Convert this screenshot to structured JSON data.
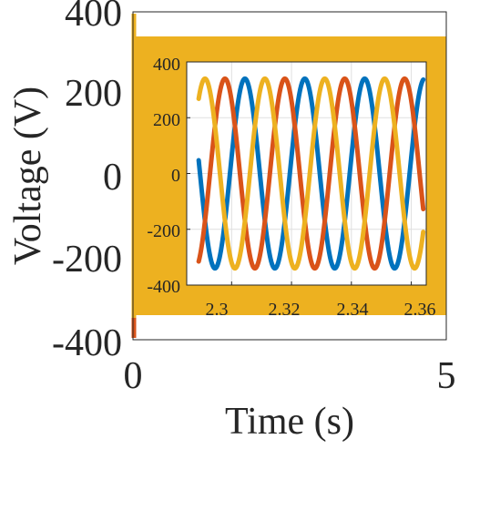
{
  "chart_data": [
    {
      "type": "line",
      "title": "",
      "xlabel": "Time (s)",
      "ylabel": "Voltage (V)",
      "xlim": [
        0,
        5
      ],
      "ylim": [
        -400,
        400
      ],
      "xticks": [
        0,
        5
      ],
      "yticks": [
        -400,
        -200,
        0,
        200,
        400
      ],
      "xtick_labels": [
        "0",
        "5"
      ],
      "ytick_labels": [
        "-400",
        "-200",
        "0",
        "200",
        "400"
      ],
      "grid": false,
      "series": [
        {
          "amplitude": 340,
          "frequency": 50,
          "phase_deg": 10,
          "color": "#0072BD"
        },
        {
          "amplitude": 340,
          "frequency": 50,
          "phase_deg": 130,
          "color": "#D95319"
        },
        {
          "amplitude": 340,
          "frequency": 50,
          "phase_deg": -110,
          "color": "#EDB120"
        }
      ]
    },
    {
      "type": "line",
      "title": "",
      "xlabel": "",
      "ylabel": "",
      "xlim": [
        2.285,
        2.365
      ],
      "ylim": [
        -400,
        400
      ],
      "xticks": [
        2.3,
        2.32,
        2.34,
        2.36
      ],
      "yticks": [
        -400,
        -200,
        0,
        200,
        400
      ],
      "xtick_labels": [
        "2.3",
        "2.32",
        "2.34",
        "2.36"
      ],
      "ytick_labels": [
        "-400",
        "-200",
        "0",
        "200",
        "400"
      ],
      "grid": true,
      "x_start": 2.289,
      "x_end": 2.364,
      "series": [
        {
          "amplitude": 340,
          "frequency": 50,
          "phase_deg": 10,
          "color": "#0072BD"
        },
        {
          "amplitude": 340,
          "frequency": 50,
          "phase_deg": 130,
          "color": "#D95319"
        },
        {
          "amplitude": 340,
          "frequency": 50,
          "phase_deg": -110,
          "color": "#EDB120"
        }
      ]
    }
  ]
}
